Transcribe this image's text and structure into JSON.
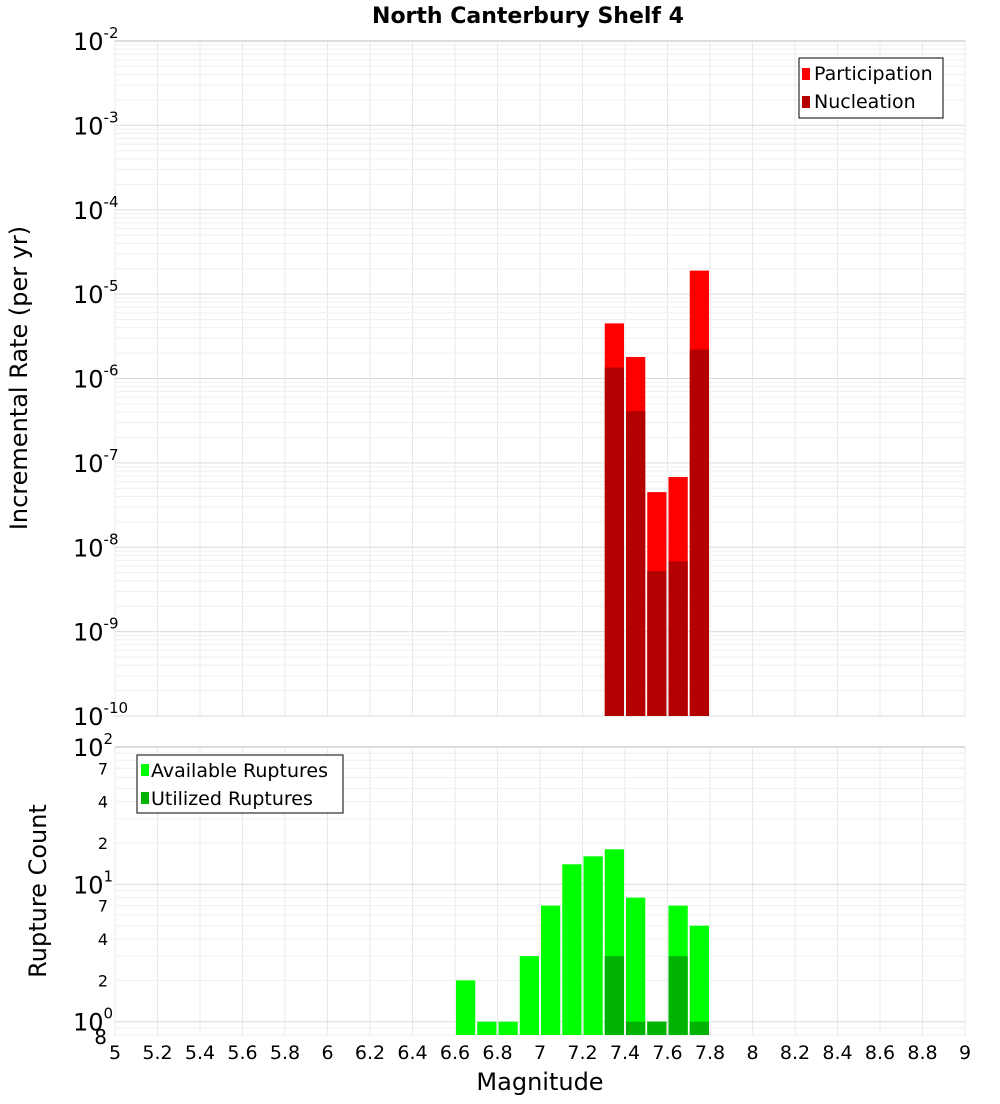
{
  "chart_data": [
    {
      "type": "bar",
      "title": "North Canterbury Shelf 4",
      "xlabel": "",
      "ylabel": "Incremental Rate (per yr)",
      "yscale": "log",
      "ylim": [
        1e-10,
        0.01
      ],
      "xlim": [
        5,
        9
      ],
      "y_tick_exponents": [
        "-2",
        "-3",
        "-4",
        "-5",
        "-6",
        "-7",
        "-8",
        "-9",
        "-10"
      ],
      "grid": true,
      "legend_position": "top-right",
      "series": [
        {
          "name": "Participation",
          "color": "#ff0000",
          "x": [
            7.35,
            7.45,
            7.55,
            7.65,
            7.75
          ],
          "values": [
            4.5e-06,
            1.8e-06,
            4.5e-08,
            6.8e-08,
            1.9e-05
          ]
        },
        {
          "name": "Nucleation",
          "color": "#b30000",
          "x": [
            7.35,
            7.45,
            7.55,
            7.65,
            7.75
          ],
          "values": [
            1.35e-06,
            4.1e-07,
            5.2e-09,
            6.8e-09,
            2.2e-06
          ]
        }
      ]
    },
    {
      "type": "bar",
      "title": "",
      "xlabel": "Magnitude",
      "ylabel": "Rupture Count",
      "yscale": "log",
      "ylim": [
        0.8,
        100
      ],
      "xlim": [
        5,
        9
      ],
      "x_ticks": [
        "5",
        "5.2",
        "5.4",
        "5.6",
        "5.8",
        "6",
        "6.2",
        "6.4",
        "6.6",
        "6.8",
        "7",
        "7.2",
        "7.4",
        "7.6",
        "7.8",
        "8",
        "8.2",
        "8.4",
        "8.6",
        "8.8",
        "9"
      ],
      "y_major_ticks": [
        {
          "base": "10",
          "exp": "2"
        },
        {
          "base": "10",
          "exp": "1"
        },
        {
          "base": "10",
          "exp": "0"
        }
      ],
      "y_minor_ticks": [
        {
          "label": "7",
          "value": 70
        },
        {
          "label": "4",
          "value": 40
        },
        {
          "label": "2",
          "value": 20
        },
        {
          "label": "7",
          "value": 7
        },
        {
          "label": "4",
          "value": 4
        },
        {
          "label": "2",
          "value": 2
        },
        {
          "label": "8",
          "value": 0.8
        }
      ],
      "grid": true,
      "legend_position": "top-left",
      "series": [
        {
          "name": "Available Ruptures",
          "color": "#00ff00",
          "x": [
            6.65,
            6.75,
            6.85,
            6.95,
            7.05,
            7.15,
            7.25,
            7.35,
            7.45,
            7.55,
            7.65,
            7.75
          ],
          "values": [
            2,
            1,
            1,
            3,
            7,
            14,
            16,
            18,
            8,
            1,
            7,
            5
          ]
        },
        {
          "name": "Utilized Ruptures",
          "color": "#00b300",
          "x": [
            7.35,
            7.45,
            7.55,
            7.65,
            7.75
          ],
          "values": [
            3,
            1,
            1,
            3,
            1
          ]
        }
      ]
    }
  ]
}
